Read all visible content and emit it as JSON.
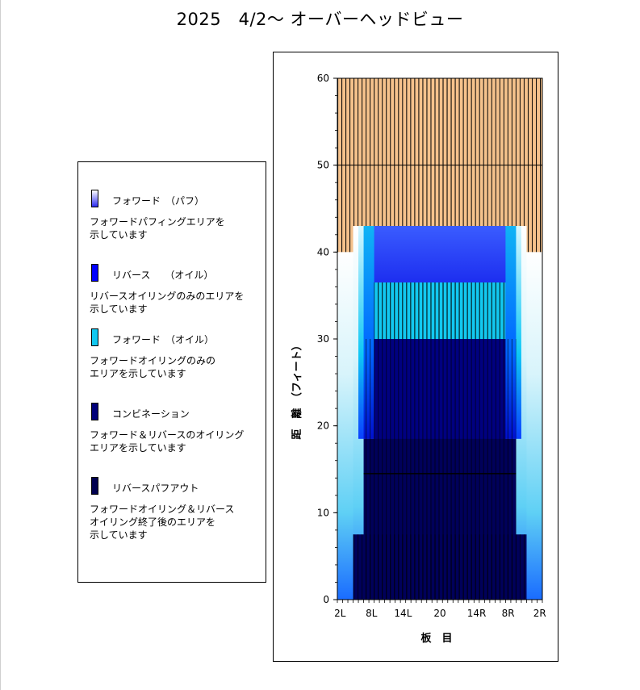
{
  "title": "2025　4/2～ オーバーヘッドビュー",
  "legend": [
    {
      "label": "フォワード　（パフ）",
      "desc": "フォワードパフィングエリアを\n示しています",
      "color_top": "#ffffff",
      "color_bottom": "#2c2cf0"
    },
    {
      "label": "リバース　　（オイル）",
      "desc": "リバースオイリングのみのエリアを\n示しています",
      "color_top": "#0000ff",
      "color_bottom": "#0000ff"
    },
    {
      "label": "フォワード　（オイル）",
      "desc": "フォワードオイリングのみの\nエリアを示しています",
      "color_top": "#12c8f0",
      "color_bottom": "#12c8f0"
    },
    {
      "label": "コンビネーション",
      "desc": "フォワード＆リバースのオイリング\nエリアを示しています",
      "color_top": "#00007a",
      "color_bottom": "#00007a"
    },
    {
      "label": "リバースパフアウト",
      "desc": "フォワードオイリング＆リバース\nオイリング終了後のエリアを\n示しています",
      "color_top": "#000050",
      "color_bottom": "#000050"
    }
  ],
  "chart_data": {
    "type": "area",
    "title": "2025　4/2～ オーバーヘッドビュー",
    "xlabel": "板　目",
    "ylabel": "距　離　（フィート）",
    "x_tick_labels": [
      "2L",
      "8L",
      "14L",
      "20",
      "14R",
      "8R",
      "2R"
    ],
    "y_ticks": [
      0,
      10,
      20,
      30,
      40,
      50,
      60
    ],
    "ylim": [
      0,
      60
    ],
    "boards": 39,
    "grid": true,
    "regions": [
      {
        "name": "フォワード　（パフ）",
        "board_from": 1,
        "board_to": 39,
        "y_from": 0,
        "y_to": 40
      },
      {
        "name": "フォワード　（パフ）",
        "board_from": 4,
        "board_to": 36,
        "y_from": 0,
        "y_to": 43
      },
      {
        "name": "フォワード　（オイル）",
        "board_from": 5,
        "board_to": 35,
        "y_from": 18.5,
        "y_to": 43
      },
      {
        "name": "リバース　　（オイル）",
        "board_from": 8,
        "board_to": 32,
        "y_from": 30,
        "y_to": 43
      },
      {
        "name": "フォワード　（オイル）",
        "board_from": 8,
        "board_to": 32,
        "y_from": 30,
        "y_to": 36.5
      },
      {
        "name": "コンビネーション",
        "board_from": 8,
        "board_to": 32,
        "y_from": 0,
        "y_to": 30
      },
      {
        "name": "リバースパフアウト",
        "board_from": 4,
        "board_to": 36,
        "y_from": 0,
        "y_to": 7.5
      },
      {
        "name": "リバースパフアウト",
        "board_from": 6,
        "board_to": 34,
        "y_from": 0,
        "y_to": 18.5
      }
    ],
    "lines": [
      {
        "y": 50,
        "board_from": 1,
        "board_to": 39
      },
      {
        "y": 14.5,
        "board_from": 6,
        "board_to": 34
      }
    ],
    "colors": {
      "background": "#f5c28c",
      "stripe": "#000000",
      "puff_top": "#ffffff",
      "puff_bottom": "#1a8cff",
      "forward_oil": "#12c8f0",
      "reverse_oil_top": "#3040ff",
      "reverse_oil_bottom": "#0000dd",
      "combination": "#000080",
      "reverse_puffout": "#00005a"
    }
  }
}
